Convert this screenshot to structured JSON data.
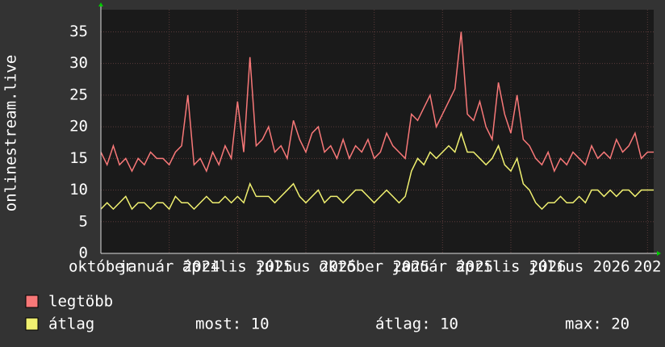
{
  "chart_data": {
    "type": "line",
    "y_label": "onlinestream.live",
    "series": [
      {
        "name": "legtöbb",
        "color": "#f87878",
        "values": [
          16,
          14,
          17,
          14,
          15,
          13,
          15,
          14,
          16,
          15,
          15,
          14,
          16,
          17,
          25,
          14,
          15,
          13,
          16,
          14,
          17,
          15,
          24,
          16,
          31,
          17,
          18,
          20,
          16,
          17,
          15,
          21,
          18,
          16,
          19,
          20,
          16,
          17,
          15,
          18,
          15,
          17,
          16,
          18,
          15,
          16,
          19,
          17,
          16,
          15,
          22,
          21,
          23,
          25,
          20,
          22,
          24,
          26,
          35,
          22,
          21,
          24,
          20,
          18,
          27,
          22,
          19,
          25,
          18,
          17,
          15,
          14,
          16,
          13,
          15,
          14,
          16,
          15,
          14,
          17,
          15,
          16,
          15,
          18,
          16,
          17,
          19,
          15,
          16,
          16
        ]
      },
      {
        "name": "átlag",
        "color": "#f0f070",
        "values": [
          7,
          8,
          7,
          8,
          9,
          7,
          8,
          8,
          7,
          8,
          8,
          7,
          9,
          8,
          8,
          7,
          8,
          9,
          8,
          8,
          9,
          8,
          9,
          8,
          11,
          9,
          9,
          9,
          8,
          9,
          10,
          11,
          9,
          8,
          9,
          10,
          8,
          9,
          9,
          8,
          9,
          10,
          10,
          9,
          8,
          9,
          10,
          9,
          8,
          9,
          13,
          15,
          14,
          16,
          15,
          16,
          17,
          16,
          19,
          16,
          16,
          15,
          14,
          15,
          17,
          14,
          13,
          15,
          11,
          10,
          8,
          7,
          8,
          8,
          9,
          8,
          8,
          9,
          8,
          10,
          10,
          9,
          10,
          9,
          10,
          10,
          9,
          10,
          10,
          10
        ]
      }
    ],
    "xlim": [
      0,
      89
    ],
    "xticks": [
      {
        "value": 0,
        "label": "október"
      },
      {
        "value": 11,
        "label": "január 2024"
      },
      {
        "value": 22,
        "label": "április 2025"
      },
      {
        "value": 33,
        "label": "július 2025"
      },
      {
        "value": 44,
        "label": "október 2025"
      },
      {
        "value": 55,
        "label": "január 2025"
      },
      {
        "value": 66,
        "label": "április 2026"
      },
      {
        "value": 77,
        "label": "július 2026"
      },
      {
        "value": 88,
        "label": "202"
      }
    ],
    "ylim": [
      0,
      38.5
    ],
    "yticks": [
      0,
      5,
      10,
      15,
      20,
      25,
      30,
      35
    ],
    "grid": true,
    "stats": [
      "most: 10",
      "átlag: 10",
      "max: 20"
    ]
  }
}
